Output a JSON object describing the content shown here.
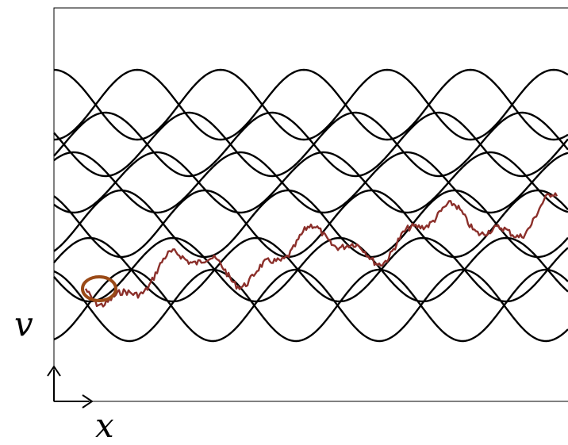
{
  "labels": {
    "vertical_axis": "v",
    "horizontal_axis": "x"
  },
  "colors": {
    "background": "#ffffff",
    "frame": "#000000",
    "curves": "#000000",
    "trajectory": "#8b2f2a",
    "start_marker": "#9a4a17"
  },
  "diagram": {
    "description_type": "phase-space sinusoidal curves with stochastic trajectory",
    "curve_count": 12,
    "trajectory_rises_left_to_right": true,
    "start_marker_shape": "ellipse"
  }
}
